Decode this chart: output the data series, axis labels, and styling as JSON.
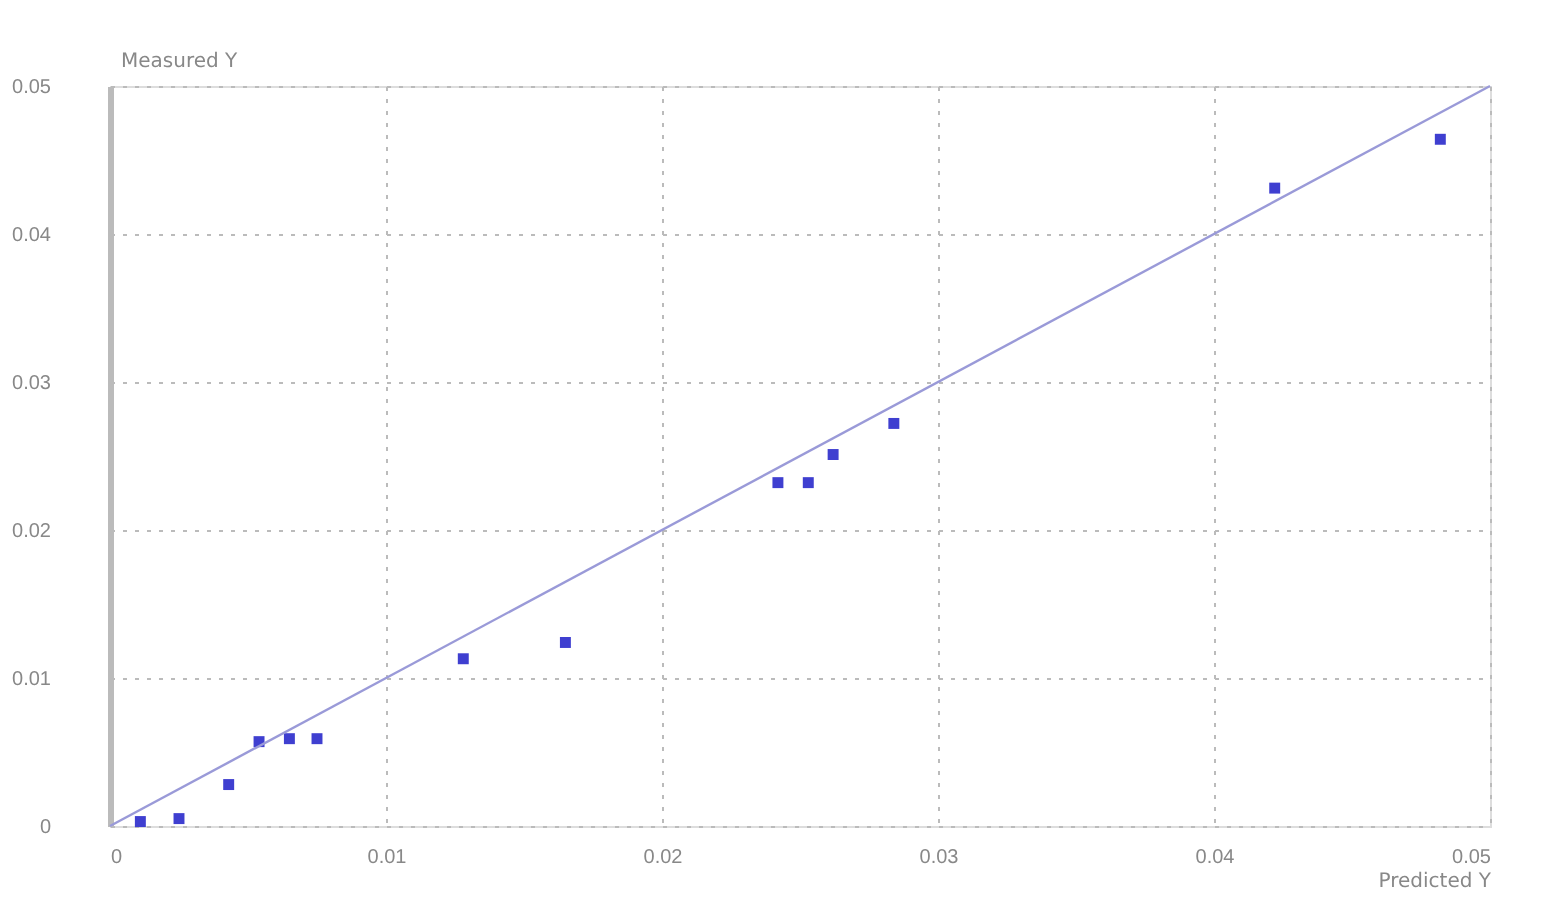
{
  "chart_data": {
    "type": "scatter",
    "xlabel": "Predicted Y",
    "ylabel": "Measured Y",
    "xlim": [
      0,
      0.05
    ],
    "xticks": [
      0,
      0.01,
      0.02,
      0.03,
      0.04,
      0.05
    ],
    "ylim": [
      0,
      0.05
    ],
    "yticks": [
      0,
      0.01,
      0.02,
      0.03,
      0.04,
      0.05
    ],
    "grid": true,
    "series": [
      {
        "color": "#3f3fd0",
        "marker": "square",
        "x": [
          0.0011,
          0.0025,
          0.0043,
          0.0054,
          0.0065,
          0.0075,
          0.0128,
          0.0165,
          0.0242,
          0.0253,
          0.0262,
          0.0284,
          0.0422,
          0.0482
        ],
        "values": [
          0.0003,
          0.0005,
          0.0028,
          0.0057,
          0.0059,
          0.0059,
          0.0113,
          0.0124,
          0.0232,
          0.0232,
          0.0251,
          0.0272,
          0.0431,
          0.0464
        ]
      },
      {
        "type": "line",
        "color": "#9a9ad8",
        "line_style": "solid",
        "x": [
          0,
          0.05
        ],
        "values": [
          0,
          0.05
        ]
      }
    ]
  }
}
